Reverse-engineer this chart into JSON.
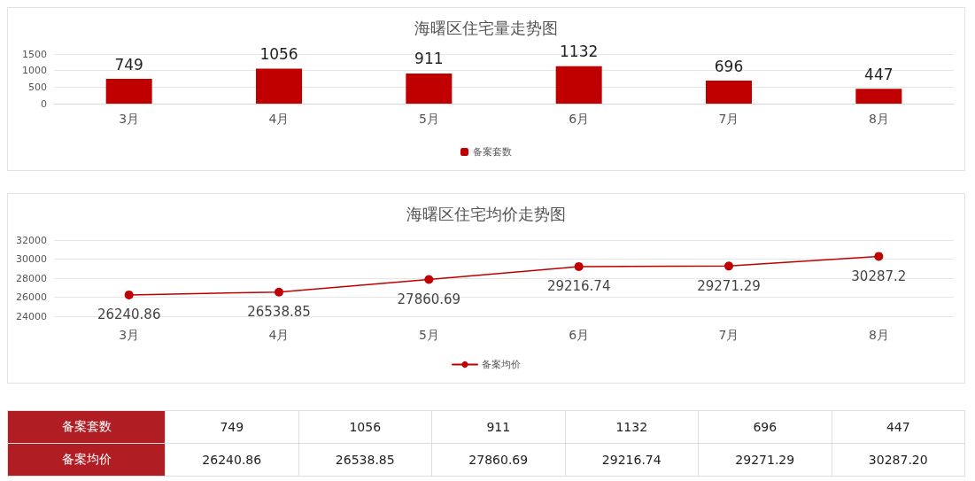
{
  "chart_data": [
    {
      "type": "bar",
      "title": "海曙区住宅量走势图",
      "categories": [
        "3月",
        "4月",
        "5月",
        "6月",
        "7月",
        "8月"
      ],
      "series": [
        {
          "name": "备案套数",
          "color": "#c00000",
          "values": [
            749,
            1056,
            911,
            1132,
            696,
            447
          ]
        }
      ],
      "ylim": [
        0,
        1500
      ],
      "yticks": [
        0,
        500,
        1000,
        1500
      ],
      "grid": "y",
      "legend": "bottom",
      "data_labels": true
    },
    {
      "type": "line",
      "title": "海曙区住宅均价走势图",
      "categories": [
        "3月",
        "4月",
        "5月",
        "6月",
        "7月",
        "8月"
      ],
      "series": [
        {
          "name": "备案均价",
          "color": "#c00000",
          "values": [
            26240.86,
            26538.85,
            27860.69,
            29216.74,
            29271.29,
            30287.2
          ]
        }
      ],
      "ylim": [
        24000,
        32000
      ],
      "yticks": [
        24000,
        26000,
        28000,
        30000,
        32000
      ],
      "grid": "y",
      "legend": "bottom",
      "data_labels": true,
      "marker": "circle",
      "line_style": "solid"
    },
    {
      "type": "other",
      "y_categories": [
        "备案套数",
        "备案均价"
      ],
      "cell_labels": [
        [
          "749",
          "1056",
          "911",
          "1132",
          "696",
          "447"
        ],
        [
          "26240.86",
          "26538.85",
          "27860.69",
          "29216.74",
          "29271.29",
          "30287.20"
        ]
      ]
    }
  ]
}
